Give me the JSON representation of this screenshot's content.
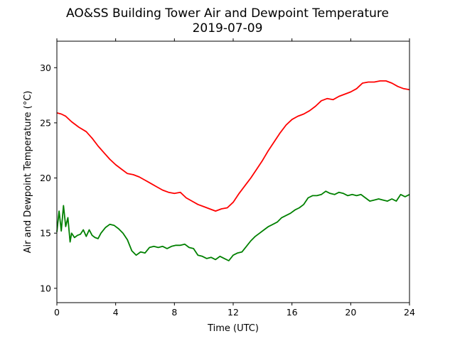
{
  "chart_data": {
    "type": "line",
    "title": "AO&SS Building Tower Air and Dewpoint Temperature",
    "subtitle": "2019-07-09",
    "xlabel": "Time (UTC)",
    "ylabel": "Air and Dewpoint Temperature (°C)",
    "xlim": [
      0,
      24
    ],
    "ylim": [
      8.7,
      32.4
    ],
    "x_ticks": [
      0,
      4,
      8,
      12,
      16,
      20,
      24
    ],
    "y_ticks": [
      10,
      15,
      20,
      25,
      30
    ],
    "grid": false,
    "legend": "none",
    "series": [
      {
        "color": "#ff0000",
        "x": [
          0,
          0.3,
          0.6,
          1.0,
          1.5,
          2.0,
          2.4,
          2.8,
          3.2,
          3.6,
          4.0,
          4.4,
          4.8,
          5.2,
          5.6,
          6.0,
          6.4,
          6.8,
          7.2,
          7.6,
          8.0,
          8.4,
          8.8,
          9.2,
          9.6,
          10.0,
          10.4,
          10.8,
          11.2,
          11.6,
          12.0,
          12.4,
          12.8,
          13.2,
          13.6,
          14.0,
          14.4,
          14.8,
          15.2,
          15.6,
          16.0,
          16.4,
          16.8,
          17.2,
          17.6,
          18.0,
          18.4,
          18.8,
          19.2,
          19.6,
          20.0,
          20.4,
          20.8,
          21.2,
          21.6,
          22.0,
          22.4,
          22.8,
          23.2,
          23.6,
          24.0
        ],
        "y": [
          25.9,
          25.8,
          25.6,
          25.1,
          24.6,
          24.2,
          23.6,
          22.9,
          22.3,
          21.7,
          21.2,
          20.8,
          20.4,
          20.3,
          20.1,
          19.8,
          19.5,
          19.2,
          18.9,
          18.7,
          18.6,
          18.7,
          18.2,
          17.9,
          17.6,
          17.4,
          17.2,
          17.0,
          17.2,
          17.3,
          17.8,
          18.6,
          19.3,
          20.0,
          20.8,
          21.6,
          22.5,
          23.3,
          24.1,
          24.8,
          25.3,
          25.6,
          25.8,
          26.1,
          26.5,
          27.0,
          27.2,
          27.1,
          27.4,
          27.6,
          27.8,
          28.1,
          28.6,
          28.7,
          28.7,
          28.8,
          28.8,
          28.6,
          28.3,
          28.1,
          28.0
        ]
      },
      {
        "color": "#008000",
        "x": [
          0,
          0.15,
          0.3,
          0.45,
          0.6,
          0.75,
          0.9,
          1.0,
          1.2,
          1.4,
          1.6,
          1.8,
          2.0,
          2.2,
          2.4,
          2.6,
          2.8,
          3.0,
          3.3,
          3.6,
          3.9,
          4.2,
          4.5,
          4.8,
          5.1,
          5.4,
          5.7,
          6.0,
          6.3,
          6.6,
          6.9,
          7.2,
          7.5,
          7.8,
          8.1,
          8.4,
          8.7,
          9.0,
          9.3,
          9.6,
          9.9,
          10.2,
          10.5,
          10.8,
          11.1,
          11.4,
          11.7,
          12.0,
          12.3,
          12.6,
          12.9,
          13.2,
          13.5,
          13.8,
          14.1,
          14.4,
          14.7,
          15.0,
          15.3,
          15.6,
          15.9,
          16.2,
          16.5,
          16.8,
          17.1,
          17.4,
          17.7,
          18.0,
          18.3,
          18.6,
          18.9,
          19.2,
          19.5,
          19.8,
          20.1,
          20.4,
          20.7,
          21.0,
          21.3,
          21.6,
          21.9,
          22.2,
          22.5,
          22.8,
          23.1,
          23.4,
          23.7,
          24.0
        ],
        "y": [
          15.1,
          17.0,
          15.2,
          17.5,
          15.6,
          16.4,
          14.2,
          15.0,
          14.6,
          14.8,
          14.9,
          15.3,
          14.7,
          15.3,
          14.8,
          14.6,
          14.5,
          15.0,
          15.5,
          15.8,
          15.7,
          15.4,
          15.0,
          14.4,
          13.4,
          13.0,
          13.3,
          13.2,
          13.7,
          13.8,
          13.7,
          13.8,
          13.6,
          13.8,
          13.9,
          13.9,
          14.0,
          13.7,
          13.6,
          13.0,
          12.9,
          12.7,
          12.8,
          12.6,
          12.9,
          12.7,
          12.5,
          13.0,
          13.2,
          13.3,
          13.8,
          14.3,
          14.7,
          15.0,
          15.3,
          15.6,
          15.8,
          16.0,
          16.4,
          16.6,
          16.8,
          17.1,
          17.3,
          17.6,
          18.2,
          18.4,
          18.4,
          18.5,
          18.8,
          18.6,
          18.5,
          18.7,
          18.6,
          18.4,
          18.5,
          18.4,
          18.5,
          18.2,
          17.9,
          18.0,
          18.1,
          18.0,
          17.9,
          18.1,
          17.9,
          18.5,
          18.3,
          18.5
        ]
      }
    ]
  }
}
